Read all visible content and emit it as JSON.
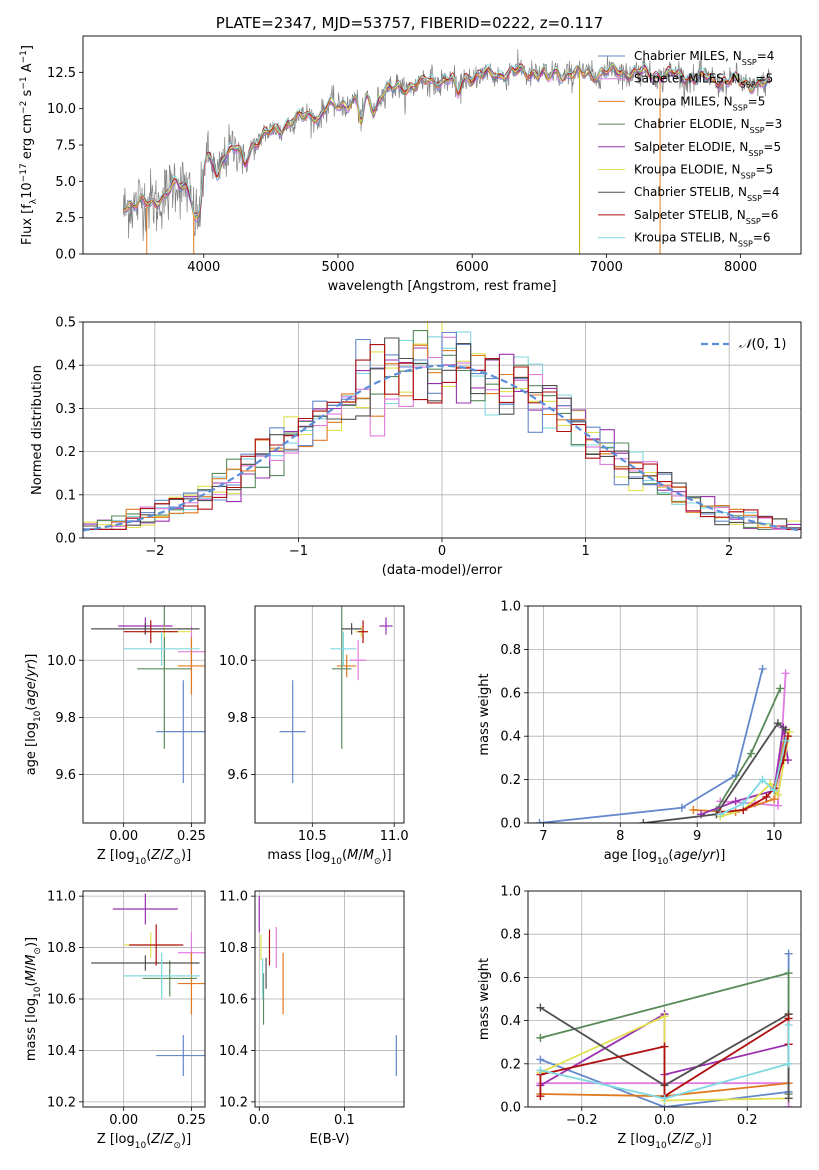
{
  "figure": {
    "title": "PLATE=2347, MJD=53757, FIBERID=0222, z=0.117"
  },
  "models": [
    {
      "label": "Chabrier MILES, N$_{SSP}$=4",
      "text": "Chabrier MILES, N",
      "n": "=4",
      "color": "#6688cc"
    },
    {
      "label": "Salpeter MILES, N$_{SSP}$=5",
      "text": "Salpeter MILES, N",
      "n": "=5",
      "color": "#e07be0"
    },
    {
      "label": "Kroupa MILES, N$_{SSP}$=5",
      "text": "Kroupa MILES, N",
      "n": "=5",
      "color": "#e07a20"
    },
    {
      "label": "Chabrier ELODIE, N$_{SSP}$=3",
      "text": "Chabrier ELODIE, N",
      "n": "=3",
      "color": "#5a8a5a"
    },
    {
      "label": "Salpeter ELODIE, N$_{SSP}$=5",
      "text": "Salpeter ELODIE, N",
      "n": "=5",
      "color": "#9a30b0"
    },
    {
      "label": "Kroupa ELODIE, N$_{SSP}$=5",
      "text": "Kroupa ELODIE, N",
      "n": "=5",
      "color": "#e0e050"
    },
    {
      "label": "Chabrier STELIB, N$_{SSP}$=4",
      "text": "Chabrier STELIB, N",
      "n": "=4",
      "color": "#505050"
    },
    {
      "label": "Salpeter STELIB, N$_{SSP}$=6",
      "text": "Salpeter STELIB, N",
      "n": "=6",
      "color": "#b01010"
    },
    {
      "label": "Kroupa STELIB, N$_{SSP}$=6",
      "text": "Kroupa STELIB, N",
      "n": "=6",
      "color": "#80d8e0"
    }
  ],
  "chart_data": [
    {
      "id": "spectrum",
      "type": "line",
      "title": "PLATE=2347, MJD=53757, FIBERID=0222, z=0.117",
      "xlabel": "wavelength [Angstrom, rest frame]",
      "ylabel": "Flux [f$_\\lambda$10$^{-17}$ erg cm$^{-2}$ s$^{-1}$ A$^{-1}$]",
      "xlim": [
        3100,
        8450
      ],
      "ylim": [
        0,
        15
      ],
      "xticks": [
        4000,
        5000,
        6000,
        7000,
        8000
      ],
      "yticks": [
        0.0,
        2.5,
        5.0,
        7.5,
        10.0,
        12.5
      ],
      "ytick_labels": [
        "0.0",
        "2.5",
        "5.0",
        "7.5",
        "10.0",
        "12.5"
      ],
      "continuum": [
        [
          3400,
          3.4
        ],
        [
          3600,
          3.5
        ],
        [
          3700,
          4.0
        ],
        [
          3800,
          4.8
        ],
        [
          3900,
          4.6
        ],
        [
          4000,
          6.3
        ],
        [
          4100,
          6.6
        ],
        [
          4200,
          7.1
        ],
        [
          4300,
          7.1
        ],
        [
          4500,
          8.4
        ],
        [
          4700,
          9.3
        ],
        [
          4900,
          10.0
        ],
        [
          5100,
          10.5
        ],
        [
          5300,
          11.1
        ],
        [
          5500,
          11.5
        ],
        [
          5700,
          11.9
        ],
        [
          5900,
          12.1
        ],
        [
          6100,
          12.3
        ],
        [
          6300,
          12.5
        ],
        [
          6500,
          12.5
        ],
        [
          6700,
          12.4
        ],
        [
          6900,
          12.4
        ],
        [
          7100,
          12.6
        ],
        [
          7300,
          12.4
        ],
        [
          7500,
          12.3
        ],
        [
          7700,
          12.1
        ],
        [
          7900,
          11.9
        ],
        [
          8100,
          11.7
        ],
        [
          8220,
          11.6
        ]
      ],
      "absorption_lines": [
        [
          3934,
          3.0
        ],
        [
          3969,
          3.0
        ],
        [
          4102,
          5.4
        ],
        [
          4304,
          6.2
        ],
        [
          4861,
          9.3
        ],
        [
          5175,
          9.0
        ],
        [
          5270,
          9.8
        ],
        [
          5892,
          10.8
        ],
        [
          6563,
          11.9
        ]
      ],
      "series": [
        {
          "name": "Chabrier MILES, N$_{SSP}$=4"
        },
        {
          "name": "Salpeter MILES, N$_{SSP}$=5"
        },
        {
          "name": "Kroupa MILES, N$_{SSP}$=5"
        },
        {
          "name": "Chabrier ELODIE, N$_{SSP}$=3"
        },
        {
          "name": "Salpeter ELODIE, N$_{SSP}$=5"
        },
        {
          "name": "Kroupa ELODIE, N$_{SSP}$=5"
        },
        {
          "name": "Chabrier STELIB, N$_{SSP}$=4"
        },
        {
          "name": "Salpeter STELIB, N$_{SSP}$=6"
        },
        {
          "name": "Kroupa STELIB, N$_{SSP}$=6"
        }
      ],
      "legend_loc": "upper right",
      "grid": false
    },
    {
      "id": "residuals",
      "type": "histogram",
      "xlabel": "(data-model)/error",
      "ylabel": "Normed distribution",
      "xlim": [
        -2.5,
        2.5
      ],
      "ylim": [
        0,
        0.5
      ],
      "xticks": [
        -2,
        -1,
        0,
        1,
        2
      ],
      "xtick_labels": [
        "−2",
        "−1",
        "0",
        "1",
        "2"
      ],
      "yticks": [
        0.0,
        0.1,
        0.2,
        0.3,
        0.4,
        0.5
      ],
      "ytick_labels": [
        "0.0",
        "0.1",
        "0.2",
        "0.3",
        "0.4",
        "0.5"
      ],
      "bin_width": 0.1,
      "reference_curve": {
        "name": "$\\mathcal{N}(0,1)$",
        "color": "#5b8fd9",
        "style": "dashed"
      },
      "legend_loc": "upper right",
      "grid": true
    },
    {
      "id": "age-vs-z",
      "type": "errorbar",
      "xlabel": "Z [log$_{10}$(Z/Z$_\\odot$)]",
      "ylabel": "age  [log$_{10}$(age/yr)]",
      "xlim": [
        -0.15,
        0.3
      ],
      "ylim": [
        9.43,
        10.19
      ],
      "xticks": [
        0.0,
        0.25
      ],
      "xtick_labels": [
        "0.00",
        "0.25"
      ],
      "yticks": [
        9.6,
        9.8,
        10.0
      ],
      "ytick_labels": [
        "9.6",
        "9.8",
        "10.0"
      ],
      "points": [
        {
          "model": 0,
          "x": 0.22,
          "y": 9.75,
          "xerr": 0.1,
          "yerr": 0.18
        },
        {
          "model": 1,
          "x": 0.25,
          "y": 10.03,
          "xerr": 0.05,
          "yerr": 0.09
        },
        {
          "model": 2,
          "x": 0.25,
          "y": 9.98,
          "xerr": 0.05,
          "yerr": 0.1
        },
        {
          "model": 3,
          "x": 0.15,
          "y": 9.97,
          "xerr": 0.1,
          "yerr": 0.28
        },
        {
          "model": 4,
          "x": 0.08,
          "y": 10.12,
          "xerr": 0.1,
          "yerr": 0.03
        },
        {
          "model": 5,
          "x": 0.15,
          "y": 10.1,
          "xerr": 0.1,
          "yerr": 0.02
        },
        {
          "model": 6,
          "x": 0.08,
          "y": 10.11,
          "xerr": 0.2,
          "yerr": 0.02
        },
        {
          "model": 7,
          "x": 0.1,
          "y": 10.1,
          "xerr": 0.1,
          "yerr": 0.04
        },
        {
          "model": 8,
          "x": 0.14,
          "y": 10.04,
          "xerr": 0.14,
          "yerr": 0.06
        }
      ],
      "grid": true
    },
    {
      "id": "age-vs-mass",
      "type": "errorbar",
      "xlabel": "mass [log$_{10}$(M/M$_\\odot$)]",
      "xlim": [
        10.15,
        11.06
      ],
      "ylim": [
        9.43,
        10.19
      ],
      "xticks": [
        10.5,
        11.0
      ],
      "xtick_labels": [
        "10.5",
        "11.0"
      ],
      "yticks": [
        9.6,
        9.8,
        10.0
      ],
      "ytick_labels": [
        "9.6",
        "9.8",
        "10.0"
      ],
      "points": [
        {
          "model": 0,
          "x": 10.38,
          "y": 9.75,
          "xerr": 0.08,
          "yerr": 0.18
        },
        {
          "model": 1,
          "x": 10.78,
          "y": 10.0,
          "xerr": 0.05,
          "yerr": 0.07
        },
        {
          "model": 2,
          "x": 10.71,
          "y": 9.98,
          "xerr": 0.06,
          "yerr": 0.04
        },
        {
          "model": 3,
          "x": 10.68,
          "y": 9.97,
          "xerr": 0.06,
          "yerr": 0.28
        },
        {
          "model": 4,
          "x": 10.95,
          "y": 10.12,
          "xerr": 0.04,
          "yerr": 0.03
        },
        {
          "model": 5,
          "x": 10.8,
          "y": 10.1,
          "xerr": 0.04,
          "yerr": 0.02
        },
        {
          "model": 6,
          "x": 10.74,
          "y": 10.11,
          "xerr": 0.06,
          "yerr": 0.02
        },
        {
          "model": 7,
          "x": 10.81,
          "y": 10.1,
          "xerr": 0.03,
          "yerr": 0.04
        },
        {
          "model": 8,
          "x": 10.69,
          "y": 10.04,
          "xerr": 0.08,
          "yerr": 0.06
        }
      ],
      "grid": true
    },
    {
      "id": "weight-vs-age",
      "type": "line",
      "xlabel": "age  [log$_{10}$(age/yr)]",
      "ylabel": "mass weight",
      "xlim": [
        6.8,
        10.35
      ],
      "ylim": [
        0,
        1
      ],
      "xticks": [
        7,
        8,
        9,
        10
      ],
      "xtick_labels": [
        "7",
        "8",
        "9",
        "10"
      ],
      "yticks": [
        0.0,
        0.2,
        0.4,
        0.6,
        0.8,
        1.0
      ],
      "ytick_labels": [
        "0.0",
        "0.2",
        "0.4",
        "0.6",
        "0.8",
        "1.0"
      ],
      "series": [
        {
          "model": 0,
          "x": [
            6.95,
            8.8,
            9.5,
            9.85
          ],
          "y": [
            0.0,
            0.07,
            0.22,
            0.71
          ]
        },
        {
          "model": 1,
          "x": [
            9.3,
            9.75,
            10.05,
            10.15
          ],
          "y": [
            0.1,
            0.09,
            0.08,
            0.69
          ]
        },
        {
          "model": 2,
          "x": [
            8.95,
            9.5,
            10.0,
            10.15
          ],
          "y": [
            0.06,
            0.05,
            0.11,
            0.43
          ]
        },
        {
          "model": 3,
          "x": [
            9.25,
            9.7,
            10.08
          ],
          "y": [
            0.06,
            0.32,
            0.62
          ]
        },
        {
          "model": 4,
          "x": [
            9.05,
            9.5,
            10.0,
            10.12,
            10.18
          ],
          "y": [
            0.04,
            0.1,
            0.15,
            0.44,
            0.29
          ]
        },
        {
          "model": 5,
          "x": [
            9.3,
            9.6,
            9.95,
            10.05,
            10.2
          ],
          "y": [
            0.03,
            0.06,
            0.18,
            0.13,
            0.42
          ]
        },
        {
          "model": 6,
          "x": [
            8.3,
            9.25,
            10.05,
            10.15
          ],
          "y": [
            0.0,
            0.04,
            0.46,
            0.43
          ]
        },
        {
          "model": 7,
          "x": [
            9.3,
            9.6,
            9.9,
            10.0,
            10.12,
            10.18
          ],
          "y": [
            0.05,
            0.06,
            0.12,
            0.16,
            0.29,
            0.4
          ]
        },
        {
          "model": 8,
          "x": [
            9.3,
            9.6,
            9.85,
            10.0,
            10.15
          ],
          "y": [
            0.04,
            0.09,
            0.2,
            0.15,
            0.38
          ]
        }
      ],
      "grid": true
    },
    {
      "id": "mass-vs-z",
      "type": "errorbar",
      "xlabel": "Z [log$_{10}$(Z/Z$_\\odot$)]",
      "ylabel": "mass [log$_{10}$(M/M$_\\odot$)]",
      "xlim": [
        -0.15,
        0.3
      ],
      "ylim": [
        10.18,
        11.02
      ],
      "xticks": [
        0.0,
        0.25
      ],
      "xtick_labels": [
        "0.00",
        "0.25"
      ],
      "yticks": [
        10.2,
        10.4,
        10.6,
        10.8,
        11.0
      ],
      "ytick_labels": [
        "10.2",
        "10.4",
        "10.6",
        "10.8",
        "11.0"
      ],
      "points": [
        {
          "model": 0,
          "x": 0.22,
          "y": 10.38,
          "xerr": 0.1,
          "yerr": 0.08
        },
        {
          "model": 1,
          "x": 0.25,
          "y": 10.78,
          "xerr": 0.05,
          "yerr": 0.08
        },
        {
          "model": 2,
          "x": 0.25,
          "y": 10.66,
          "xerr": 0.05,
          "yerr": 0.12
        },
        {
          "model": 3,
          "x": 0.17,
          "y": 10.68,
          "xerr": 0.1,
          "yerr": 0.07
        },
        {
          "model": 4,
          "x": 0.08,
          "y": 10.95,
          "xerr": 0.12,
          "yerr": 0.06
        },
        {
          "model": 5,
          "x": 0.1,
          "y": 10.81,
          "xerr": 0.1,
          "yerr": 0.05
        },
        {
          "model": 6,
          "x": 0.08,
          "y": 10.74,
          "xerr": 0.2,
          "yerr": 0.03
        },
        {
          "model": 7,
          "x": 0.12,
          "y": 10.81,
          "xerr": 0.1,
          "yerr": 0.08
        },
        {
          "model": 8,
          "x": 0.14,
          "y": 10.69,
          "xerr": 0.14,
          "yerr": 0.09
        }
      ],
      "grid": true
    },
    {
      "id": "mass-vs-ebv",
      "type": "errorbar",
      "xlabel": "E(B-V)",
      "xlim": [
        -0.005,
        0.17
      ],
      "ylim": [
        10.18,
        11.02
      ],
      "xticks": [
        0.0,
        0.1
      ],
      "xtick_labels": [
        "0.0",
        "0.1"
      ],
      "yticks": [
        10.2,
        10.4,
        10.6,
        10.8,
        11.0
      ],
      "ytick_labels": [
        "10.2",
        "10.4",
        "10.6",
        "10.8",
        "11.0"
      ],
      "points": [
        {
          "model": 0,
          "x": 0.161,
          "y": 10.38,
          "xerr": 0.0,
          "yerr": 0.08
        },
        {
          "model": 1,
          "x": 0.02,
          "y": 10.8,
          "xerr": 0.0,
          "yerr": 0.08
        },
        {
          "model": 2,
          "x": 0.028,
          "y": 10.66,
          "xerr": 0.0,
          "yerr": 0.12
        },
        {
          "model": 3,
          "x": 0.005,
          "y": 10.6,
          "xerr": 0.0,
          "yerr": 0.1
        },
        {
          "model": 4,
          "x": 0.0,
          "y": 10.93,
          "xerr": 0.0,
          "yerr": 0.07
        },
        {
          "model": 5,
          "x": 0.002,
          "y": 10.8,
          "xerr": 0.0,
          "yerr": 0.05
        },
        {
          "model": 6,
          "x": 0.008,
          "y": 10.7,
          "xerr": 0.0,
          "yerr": 0.06
        },
        {
          "model": 7,
          "x": 0.012,
          "y": 10.8,
          "xerr": 0.0,
          "yerr": 0.07
        },
        {
          "model": 8,
          "x": 0.004,
          "y": 10.68,
          "xerr": 0.0,
          "yerr": 0.08
        }
      ],
      "grid": true
    },
    {
      "id": "weight-vs-z",
      "type": "line",
      "xlabel": "Z [log$_{10}$(Z/Z$_\\odot$)]",
      "ylabel": "mass weight",
      "xlim": [
        -0.33,
        0.33
      ],
      "ylim": [
        0,
        1
      ],
      "xticks": [
        -0.2,
        0.0,
        0.2
      ],
      "xtick_labels": [
        "−0.2",
        "0.0",
        "0.2"
      ],
      "yticks": [
        0.0,
        0.2,
        0.4,
        0.6,
        0.8,
        1.0
      ],
      "ytick_labels": [
        "0.0",
        "0.2",
        "0.4",
        "0.6",
        "0.8",
        "1.0"
      ],
      "series": [
        {
          "model": 0,
          "x": [
            -0.3,
            0.0,
            0.3,
            0.3
          ],
          "y": [
            0.22,
            0.0,
            0.07,
            0.71
          ]
        },
        {
          "model": 1,
          "x": [
            -0.3,
            0.0,
            0.3,
            0.3
          ],
          "y": [
            0.11,
            0.11,
            0.11,
            0.0
          ]
        },
        {
          "model": 2,
          "x": [
            -0.3,
            0.0,
            0.3,
            0.3
          ],
          "y": [
            0.06,
            0.05,
            0.11,
            0.43
          ]
        },
        {
          "model": 3,
          "x": [
            -0.3,
            0.3,
            0.3
          ],
          "y": [
            0.32,
            0.62,
            0.06
          ]
        },
        {
          "model": 4,
          "x": [
            -0.3,
            0.0,
            0.0,
            0.3
          ],
          "y": [
            0.1,
            0.43,
            0.15,
            0.29
          ]
        },
        {
          "model": 5,
          "x": [
            -0.3,
            0.0,
            0.0,
            0.3
          ],
          "y": [
            0.16,
            0.42,
            0.03,
            0.04
          ]
        },
        {
          "model": 6,
          "x": [
            -0.3,
            0.0,
            0.3,
            0.3
          ],
          "y": [
            0.46,
            0.1,
            0.43,
            0.04
          ]
        },
        {
          "model": 7,
          "x": [
            -0.3,
            -0.3,
            0.0,
            0.0,
            0.3,
            0.3
          ],
          "y": [
            0.05,
            0.15,
            0.28,
            0.05,
            0.41,
            0.29
          ]
        },
        {
          "model": 8,
          "x": [
            -0.3,
            0.0,
            0.3,
            0.3
          ],
          "y": [
            0.17,
            0.04,
            0.2,
            0.38
          ]
        }
      ],
      "grid": true
    }
  ]
}
